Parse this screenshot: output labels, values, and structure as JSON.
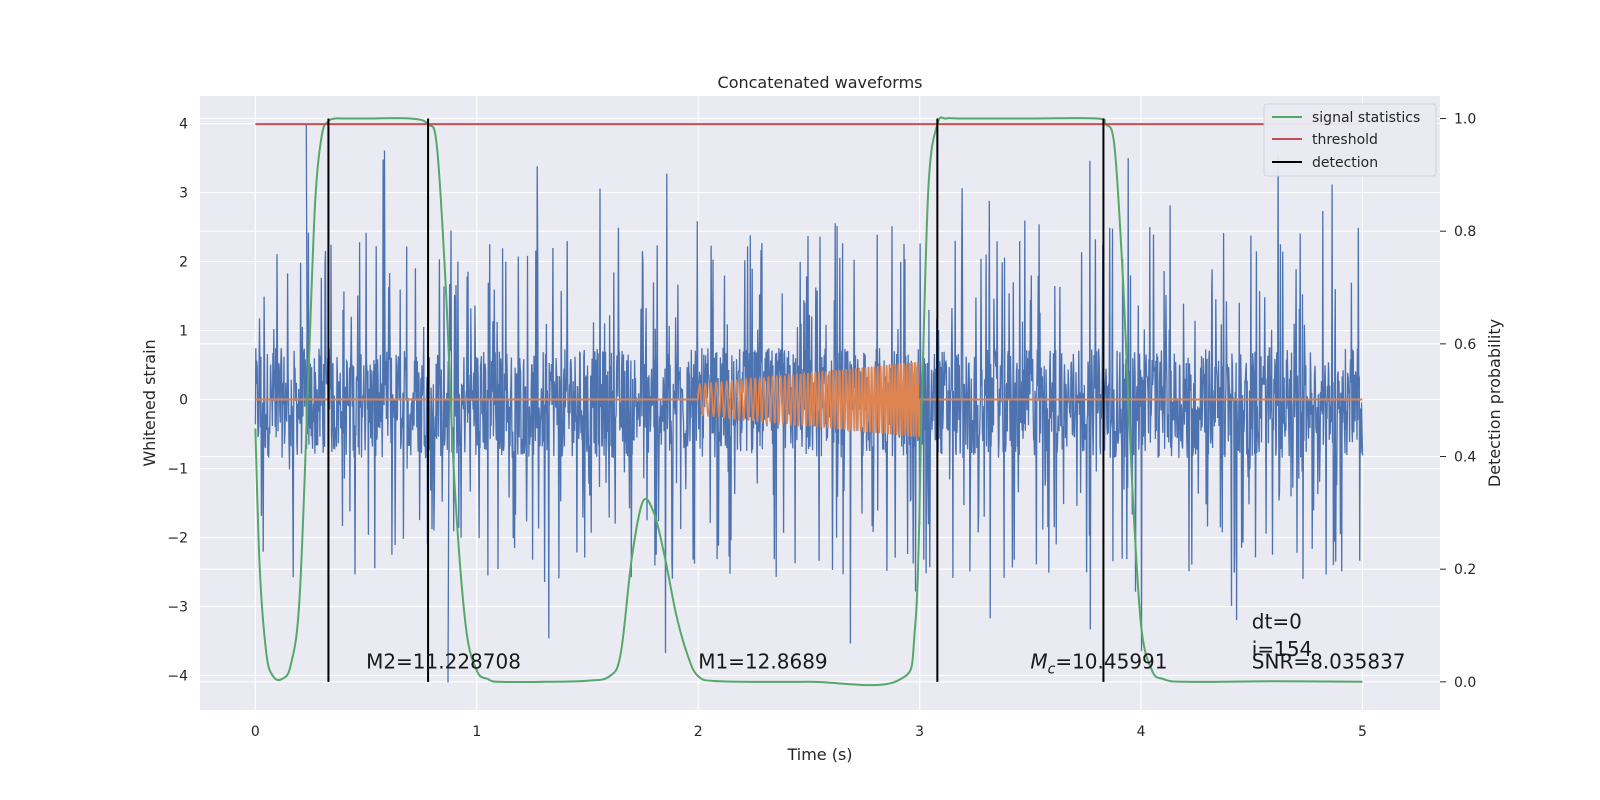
{
  "chart_data": {
    "type": "line",
    "title": "Concatenated waveforms",
    "xlabel": "Time (s)",
    "ylabel_left": "Whitened strain",
    "ylabel_right": "Detection probability",
    "xlim": [
      -0.25,
      5.35
    ],
    "ylim_left": [
      -4.5,
      4.4
    ],
    "ylim_right": [
      -0.05,
      1.04
    ],
    "xticks": [
      0,
      1,
      2,
      3,
      4,
      5
    ],
    "xtick_labels": [
      "0",
      "1",
      "2",
      "3",
      "4",
      "5"
    ],
    "yticks_left": [
      -4,
      -3,
      -2,
      -1,
      0,
      1,
      2,
      3,
      4
    ],
    "ytick_labels_left": [
      "−4",
      "−3",
      "−2",
      "−1",
      "0",
      "1",
      "2",
      "3",
      "4"
    ],
    "yticks_right": [
      0.0,
      0.2,
      0.4,
      0.6,
      0.8,
      1.0
    ],
    "ytick_labels_right": [
      "0.0",
      "0.2",
      "0.4",
      "0.6",
      "0.8",
      "1.0"
    ],
    "grid": true,
    "legend_position": "top-right",
    "noise": {
      "x_range": [
        0,
        5
      ],
      "band": [
        -0.85,
        0.75
      ],
      "extremes": [
        -4.1,
        4.0
      ],
      "color": "#4c72b0"
    },
    "template": {
      "x_range": [
        0,
        5
      ],
      "chirp_range": [
        2.0,
        3.0
      ],
      "amplitude_start": 0.22,
      "amplitude_end": 0.55,
      "color": "#dd8452"
    },
    "series": [
      {
        "name": "signal statistics",
        "color": "#55a868",
        "axis": "right",
        "x": [
          0.0,
          0.02,
          0.05,
          0.08,
          0.12,
          0.16,
          0.2,
          0.24,
          0.27,
          0.3,
          0.33,
          0.36,
          0.4,
          0.5,
          0.7,
          0.78,
          0.82,
          0.86,
          0.9,
          0.95,
          1.0,
          1.05,
          1.1,
          1.3,
          1.5,
          1.6,
          1.65,
          1.7,
          1.75,
          1.8,
          1.85,
          1.9,
          1.95,
          2.0,
          2.1,
          2.5,
          2.9,
          2.98,
          3.01,
          3.04,
          3.08,
          3.12,
          3.2,
          3.5,
          3.8,
          3.84,
          3.88,
          3.92,
          3.96,
          4.0,
          4.05,
          4.1,
          4.2,
          4.6,
          5.0
        ],
        "y": [
          0.45,
          0.2,
          0.05,
          0.01,
          0.005,
          0.03,
          0.15,
          0.55,
          0.85,
          0.97,
          0.995,
          1.0,
          1.0,
          1.0,
          1.0,
          0.99,
          0.95,
          0.7,
          0.35,
          0.1,
          0.02,
          0.005,
          0.0,
          0.0,
          0.002,
          0.01,
          0.05,
          0.22,
          0.32,
          0.3,
          0.22,
          0.12,
          0.05,
          0.01,
          0.001,
          0.0,
          0.002,
          0.1,
          0.5,
          0.88,
          0.99,
          1.0,
          1.0,
          1.0,
          1.0,
          0.99,
          0.95,
          0.7,
          0.35,
          0.1,
          0.02,
          0.005,
          0.0,
          0.001,
          0.0
        ]
      },
      {
        "name": "threshold",
        "color": "#c44e52",
        "axis": "right",
        "x": [
          0,
          5
        ],
        "y": [
          0.99,
          0.99
        ]
      },
      {
        "name": "detection",
        "color": "#000000",
        "axis": "right",
        "x": [
          0.33,
          0.78,
          3.08,
          3.83
        ],
        "y_range": [
          0.0,
          1.0
        ]
      }
    ],
    "annotations": [
      {
        "text": "M2=11.228708",
        "x": 0.5,
        "y": -3.9
      },
      {
        "text": "M1=12.8689",
        "x": 2.0,
        "y": -3.9
      },
      {
        "text_main": "M",
        "text_sub": "c",
        "text_rest": "=10.45991",
        "x": 3.5,
        "y": -3.9
      },
      {
        "text": "dt=0",
        "x": 4.5,
        "y": -3.32
      },
      {
        "text": "i=154",
        "x": 4.5,
        "y": -3.72
      },
      {
        "text": "SNR=8.035837",
        "x": 4.5,
        "y": -3.9
      }
    ]
  }
}
